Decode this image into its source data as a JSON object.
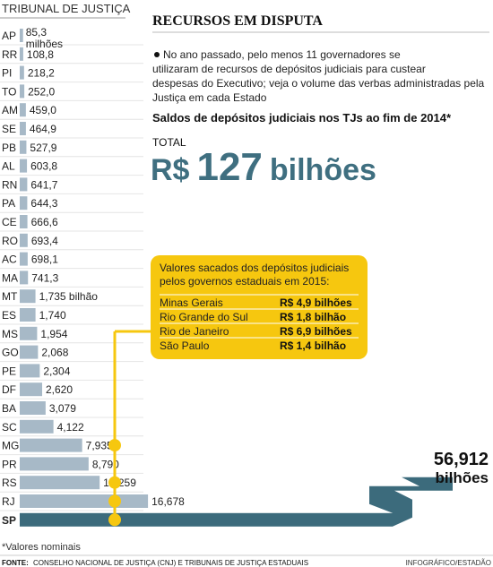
{
  "header": {
    "section": "TRIBUNAL DE JUSTIÇA",
    "title": "RECURSOS EM DISPUTA",
    "description": "No ano passado, pelo menos 11 governadores se utilizaram de recursos de depósitos judiciais para custear despesas do Executivo; veja o volume das verbas administradas pela Justiça em cada Estado"
  },
  "colors": {
    "bar": "#a7b9c7",
    "bar_dark": "#3c6b7c",
    "accent": "#f6c70f",
    "total": "#3f6f80",
    "rule": "#cccccc"
  },
  "chart_data": {
    "type": "bar",
    "orientation": "horizontal",
    "title": "Saldos de depósitos judiciais nos TJs ao fim de 2014*",
    "total_label": "TOTAL",
    "total_value": "R$ 127 bilhões",
    "categories": [
      "AP",
      "RR",
      "PI",
      "TO",
      "AM",
      "SE",
      "PB",
      "AL",
      "RN",
      "PA",
      "CE",
      "RO",
      "AC",
      "MA",
      "MT",
      "ES",
      "MS",
      "GO",
      "PE",
      "DF",
      "BA",
      "SC",
      "MG",
      "PR",
      "RS",
      "RJ",
      "SP"
    ],
    "values": [
      85.3,
      108.8,
      218.2,
      252.0,
      459.0,
      464.9,
      527.9,
      603.8,
      641.7,
      644.3,
      666.6,
      693.4,
      698.1,
      741.3,
      1735,
      1740,
      1954,
      2068,
      2304,
      2620,
      3079,
      4122,
      7935,
      8790,
      10259,
      16678,
      56912
    ],
    "value_labels": [
      "85,3 milhões",
      "108,8",
      "218,2",
      "252,0",
      "459,0",
      "464,9",
      "527,9",
      "603,8",
      "641,7",
      "644,3",
      "666,6",
      "693,4",
      "698,1",
      "741,3",
      "1,735 bilhão",
      "1,740",
      "1,954",
      "2,068",
      "2,304",
      "2,620",
      "3,079",
      "4,122",
      "7,935",
      "8,790",
      "10,259",
      "16,678",
      "56,912 bilhões"
    ],
    "unit_note": "values in R$ milhões",
    "highlighted": [
      "MG",
      "RS",
      "RJ",
      "SP"
    ]
  },
  "callout": {
    "title": "Valores sacados dos depósitos judiciais pelos governos estaduais em 2015:",
    "rows": [
      {
        "state": "Minas Gerais",
        "value": "R$ 4,9 bilhões"
      },
      {
        "state": "Rio Grande do Sul",
        "value": "R$ 1,8 bilhão"
      },
      {
        "state": "Rio de Janeiro",
        "value": "R$ 6,9 bilhões"
      },
      {
        "state": "São Paulo",
        "value": "R$ 1,4 bilhão"
      }
    ]
  },
  "footer": {
    "note": "*Valores nominais",
    "source_label": "FONTE:",
    "source": "CONSELHO NACIONAL DE JUSTIÇA (CNJ) E TRIBUNAIS DE JUSTIÇA ESTADUAIS",
    "credit": "INFOGRÁFICO/ESTADÃO"
  }
}
